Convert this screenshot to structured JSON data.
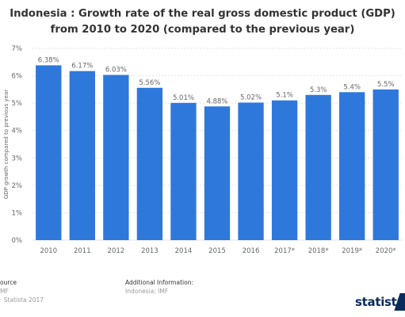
{
  "title_lines": [
    "Indonesia : Growth rate of the real gross domestic product (GDP)",
    "from 2010 to 2020 (compared to the previous year)"
  ],
  "chart_data": {
    "type": "bar",
    "title": "Indonesia : Growth rate of the real gross domestic product (GDP) from 2010 to 2020 (compared to the previous year)",
    "categories": [
      "2010",
      "2011",
      "2012",
      "2013",
      "2014",
      "2015",
      "2016",
      "2017*",
      "2018*",
      "2019*",
      "2020*"
    ],
    "values": [
      6.38,
      6.17,
      6.03,
      5.56,
      5.01,
      4.88,
      5.02,
      5.1,
      5.3,
      5.4,
      5.5
    ],
    "value_labels": [
      "6.38%",
      "6.17%",
      "6.03%",
      "5.56%",
      "5.01%",
      "4.88%",
      "5.02%",
      "5.1%",
      "5.3%",
      "5.4%",
      "5.5%"
    ],
    "ylabel": "GDP growth compared to previous year",
    "xlabel": "",
    "ylim": [
      0,
      7
    ],
    "yticks": [
      "0%",
      "1%",
      "2%",
      "3%",
      "4%",
      "5%",
      "6%",
      "7%"
    ],
    "grid": true,
    "bar_color": "#2e78dc",
    "grid_color": "#e2e2e2"
  },
  "footer": {
    "source_head": "ource",
    "source_line1": "MF",
    "source_line2": "· Statista 2017",
    "info_head": "Additional Information:",
    "info_line1": "Indonesia; IMF"
  },
  "brand": {
    "name": "statista",
    "color": "#0a2b5c"
  }
}
